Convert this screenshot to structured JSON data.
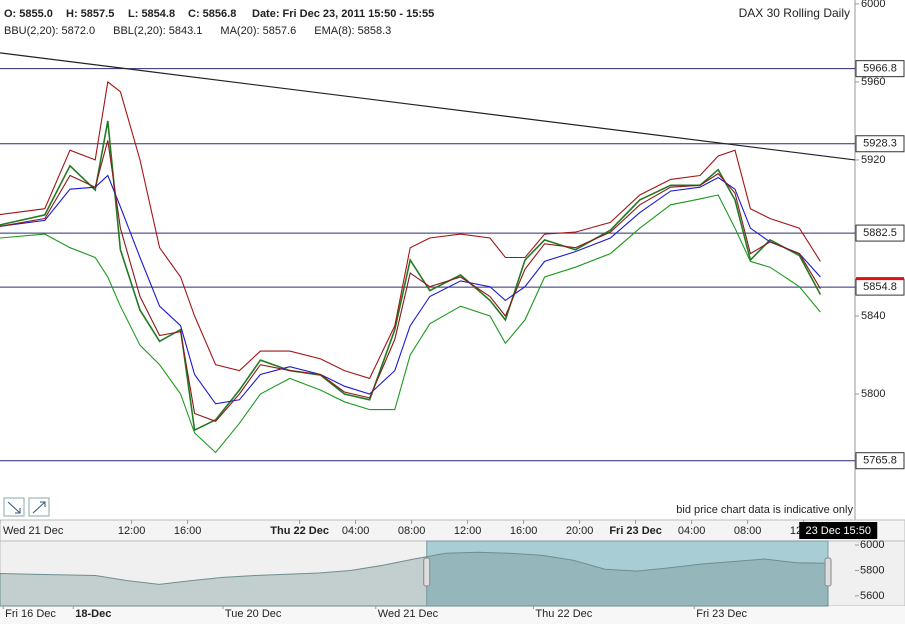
{
  "header": {
    "open": "O: 5855.0",
    "high": "H: 5857.5",
    "low": "L: 5854.8",
    "close": "C: 5856.8",
    "date": "Date: Fri Dec 23, 2011 15:50 - 15:55",
    "instrument": "DAX 30  Rolling Daily"
  },
  "chart_data": [
    {
      "type": "line",
      "note": "bid price chart data is indicative only",
      "x": [
        2.6,
        5.8,
        7.6,
        9.4,
        10.3,
        11.2,
        12.6,
        14,
        15.5,
        16.5,
        18,
        19.7,
        21.2,
        23.3,
        25.5,
        27.2,
        29,
        30.8,
        31.9,
        33.3,
        35.5,
        37.6,
        38.7,
        40.1,
        41.5,
        43.7,
        46.2,
        48.3,
        50.5,
        52.6,
        53.9,
        55.1,
        56.2,
        57.6,
        59.7,
        61.2
      ],
      "series": [
        {
          "color": "#237a23",
          "values": [
            5886.7,
            5891.8,
            5917,
            5904.6,
            5940,
            5874,
            5843,
            5827,
            5833,
            5781.5,
            5786.7,
            5802,
            5817.4,
            5812,
            5809.7,
            5800,
            5797,
            5833,
            5868.7,
            5853,
            5861,
            5848,
            5838,
            5868.7,
            5879,
            5874,
            5884,
            5899.5,
            5907,
            5907,
            5915,
            5899.5,
            5868.7,
            5879,
            5871,
            5851
          ]
        },
        {
          "name": "BBU(2,20): 5872.0",
          "color": "#a31515",
          "values": [
            5892,
            5895,
            5925,
            5920,
            5960,
            5955,
            5920,
            5875,
            5860,
            5840,
            5815,
            5812,
            5822,
            5822,
            5818,
            5812,
            5808,
            5835,
            5875,
            5880,
            5882,
            5880,
            5870,
            5870,
            5882,
            5883,
            5888,
            5902,
            5910,
            5912,
            5922,
            5925,
            5895,
            5890,
            5885,
            5868
          ]
        },
        {
          "name": "BBL(2,20): 5843.1",
          "color": "#1e9a1e",
          "values": [
            5880,
            5882,
            5875,
            5870,
            5860,
            5845,
            5825,
            5815,
            5800,
            5780,
            5770,
            5785,
            5800,
            5808,
            5802,
            5796,
            5792,
            5792,
            5820,
            5836,
            5845,
            5840,
            5826,
            5838,
            5860,
            5865,
            5872,
            5885,
            5897,
            5900,
            5902,
            5885,
            5868,
            5865,
            5855,
            5842
          ]
        },
        {
          "name": "MA(20): 5857.6",
          "color": "#1a1ad0",
          "values": [
            5886,
            5889,
            5905,
            5906,
            5912,
            5896,
            5870,
            5845,
            5835,
            5810,
            5795,
            5797,
            5810,
            5814,
            5810,
            5804,
            5800,
            5812,
            5835,
            5850,
            5858,
            5855,
            5848,
            5855,
            5868,
            5873,
            5880,
            5893,
            5904,
            5906,
            5911,
            5905,
            5885,
            5878,
            5872,
            5860
          ]
        },
        {
          "name": "EMA(8): 5858.3",
          "color": "#8b1a1a",
          "values": [
            5886,
            5890,
            5912,
            5906,
            5930,
            5885,
            5850,
            5830,
            5832,
            5790,
            5786,
            5800,
            5815,
            5812,
            5810,
            5801,
            5798,
            5828,
            5862,
            5855,
            5860,
            5850,
            5840,
            5864,
            5877,
            5875,
            5883,
            5897,
            5906,
            5907,
            5913,
            5903,
            5872,
            5878,
            5872,
            5854
          ]
        }
      ],
      "levels": [
        5966.8,
        5928.3,
        5882.5,
        5854.8,
        5765.8
      ],
      "level_color": "#2b2b7a",
      "current_level": 3,
      "trendline": {
        "x": [
          2.6,
          63.67
        ],
        "y": [
          5974.9,
          5920
        ]
      },
      "cursor": {
        "x": 63.83,
        "label": "23 Dec 15:50"
      },
      "xlim": [
        2.6,
        63.67
      ],
      "ylim": [
        5735.4,
        6002
      ],
      "xticks": [
        {
          "value": 2.6,
          "label": "Wed 21 Dec"
        },
        {
          "value": 12,
          "label": "12:00"
        },
        {
          "value": 16,
          "label": "16:00"
        },
        {
          "value": 24,
          "label": "Thu 22 Dec"
        },
        {
          "value": 28,
          "label": "04:00"
        },
        {
          "value": 32,
          "label": "08:00"
        },
        {
          "value": 36,
          "label": "12:00"
        },
        {
          "value": 40,
          "label": "16:00"
        },
        {
          "value": 44,
          "label": "20:00"
        },
        {
          "value": 48,
          "label": "Fri 23 Dec"
        },
        {
          "value": 52,
          "label": "04:00"
        },
        {
          "value": 56,
          "label": "08:00"
        },
        {
          "value": 60,
          "label": "12:00"
        }
      ],
      "yticks": [
        5800,
        5840,
        5920,
        5960,
        6000
      ]
    },
    {
      "type": "area",
      "x": [
        0,
        0.2,
        0.4,
        0.6,
        0.8,
        1.0,
        1.2,
        1.4,
        1.6,
        1.8,
        2.0,
        2.2,
        2.4,
        2.6,
        2.8,
        3.0,
        3.2,
        3.4,
        3.6,
        3.8,
        4.0,
        4.2,
        4.4,
        4.6,
        4.8,
        5.0,
        5.2
      ],
      "values": [
        5776,
        5770,
        5765,
        5760,
        5720,
        5690,
        5720,
        5745,
        5760,
        5770,
        5780,
        5800,
        5840,
        5890,
        5935,
        5944,
        5935,
        5920,
        5880,
        5810,
        5795,
        5820,
        5850,
        5870,
        5890,
        5860,
        5856
      ],
      "color": "#6f8f8f",
      "window": [
        2.68,
        5.2
      ],
      "xlim": [
        0,
        5.2
      ],
      "ylim": [
        5520,
        6032
      ],
      "xticks": [
        {
          "value": 0.02,
          "label": "Fri 16 Dec"
        },
        {
          "value": 0.46,
          "label": "18-Dec"
        },
        {
          "value": 1.4,
          "label": "Tue 20 Dec"
        },
        {
          "value": 2.36,
          "label": "Wed 21 Dec"
        },
        {
          "value": 3.35,
          "label": "Thu 22 Dec"
        },
        {
          "value": 4.36,
          "label": "Fri 23 Dec"
        }
      ],
      "yticks": [
        5600,
        5800,
        6000
      ]
    }
  ]
}
